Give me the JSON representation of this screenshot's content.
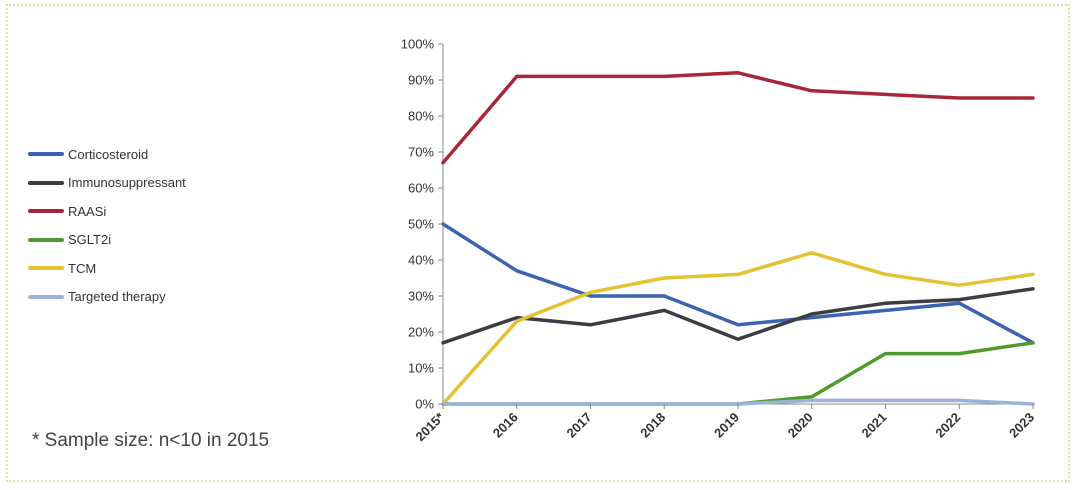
{
  "chart_data": {
    "type": "line",
    "categories": [
      "2015*",
      "2016",
      "2017",
      "2018",
      "2019",
      "2020",
      "2021",
      "2022",
      "2023"
    ],
    "ylim": [
      0,
      100
    ],
    "yticks": [
      "0%",
      "10%",
      "20%",
      "30%",
      "40%",
      "50%",
      "60%",
      "70%",
      "80%",
      "90%",
      "100%"
    ],
    "grid": false,
    "legend_position": "left",
    "series": [
      {
        "name": "Corticosteroid",
        "color": "#3a63b0",
        "values": [
          50,
          37,
          30,
          30,
          22,
          24,
          26,
          28,
          17
        ]
      },
      {
        "name": "Immunosuppressant",
        "color": "#3c3c44",
        "values": [
          17,
          24,
          22,
          26,
          18,
          25,
          28,
          29,
          32
        ]
      },
      {
        "name": "RAASi",
        "color": "#a8263a",
        "values": [
          67,
          91,
          91,
          91,
          92,
          87,
          86,
          85,
          85
        ]
      },
      {
        "name": "SGLT2i",
        "color": "#4f9a2c",
        "values": [
          0,
          0,
          0,
          0,
          0,
          2,
          14,
          14,
          17
        ]
      },
      {
        "name": "TCM",
        "color": "#e4c230",
        "values": [
          0,
          23,
          31,
          35,
          36,
          42,
          36,
          33,
          36
        ]
      },
      {
        "name": "Targeted therapy",
        "color": "#9ab3d8",
        "values": [
          0,
          0,
          0,
          0,
          0,
          1,
          1,
          1,
          0
        ]
      }
    ]
  },
  "note": "* Sample size: n<10 in 2015"
}
